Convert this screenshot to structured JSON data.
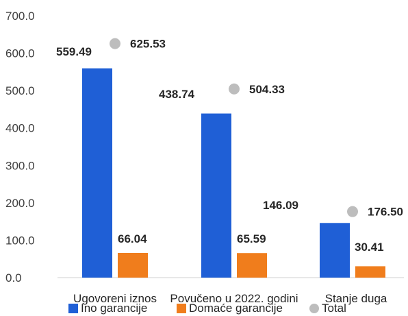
{
  "chart_data": {
    "type": "bar",
    "categories": [
      "Ugovoreni iznos",
      "Povučeno u 2022. godini",
      "Stanje duga"
    ],
    "series": [
      {
        "name": "Ino garancije",
        "values": [
          559.49,
          438.74,
          146.09
        ],
        "color": "#1f5fd6",
        "kind": "bar"
      },
      {
        "name": "Domaće garancije",
        "values": [
          66.04,
          65.59,
          30.41
        ],
        "color": "#f07d1c",
        "kind": "bar"
      },
      {
        "name": "Total",
        "values": [
          625.53,
          504.33,
          176.5
        ],
        "color": "#bdbdbd",
        "kind": "marker"
      }
    ],
    "ylim": [
      0,
      700
    ],
    "yticks": [
      "0.0",
      "100.0",
      "200.0",
      "300.0",
      "400.0",
      "500.0",
      "600.0",
      "700.0"
    ],
    "data_labels": {
      "Ino garancije": [
        "559.49",
        "438.74",
        "146.09"
      ],
      "Domaće garancije": [
        "66.04",
        "65.59",
        "30.41"
      ],
      "Total": [
        "625.53",
        "504.33",
        "176.50"
      ]
    },
    "legend": {
      "position": "bottom"
    },
    "grid": false,
    "title": "",
    "xlabel": "",
    "ylabel": ""
  }
}
